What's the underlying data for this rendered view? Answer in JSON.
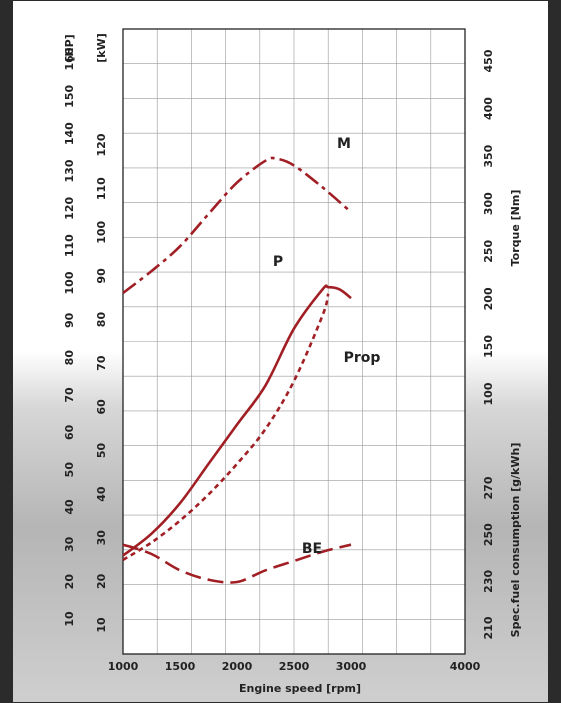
{
  "chart_data": {
    "type": "line",
    "xlabel": "Engine speed [rpm]",
    "x_ticks": [
      1000,
      1500,
      2000,
      2500,
      3000,
      4000
    ],
    "xlim": [
      1000,
      4000
    ],
    "axes": {
      "hp": {
        "label": "[HP]",
        "ticks": [
          10,
          20,
          30,
          40,
          50,
          60,
          70,
          80,
          90,
          100,
          110,
          120,
          130,
          140,
          150,
          160
        ]
      },
      "kw": {
        "label": "[kW]",
        "ticks": [
          10,
          20,
          30,
          40,
          50,
          60,
          70,
          80,
          90,
          100,
          110,
          120
        ]
      },
      "torque": {
        "label": "Torque [Nm]",
        "ticks": [
          100,
          150,
          200,
          250,
          300,
          350,
          400,
          450
        ]
      },
      "fuel": {
        "label": "Spec.fuel consumption [g/kWh]",
        "ticks": [
          210,
          230,
          250,
          270
        ]
      }
    },
    "grid": true,
    "color": "#a11f24",
    "series": [
      {
        "name": "M",
        "axis": "torque",
        "style": "dash-dot",
        "x": [
          1000,
          1250,
          1500,
          1750,
          2000,
          2250,
          2350,
          2500,
          2750,
          3000
        ],
        "y": [
          202,
          225,
          251,
          285,
          318,
          341,
          343,
          336,
          313,
          287
        ]
      },
      {
        "name": "P",
        "axis": "kw",
        "style": "solid",
        "x": [
          1000,
          1250,
          1500,
          1750,
          2000,
          2250,
          2500,
          2750,
          2800,
          2900,
          3000
        ],
        "y": [
          25,
          30,
          37,
          46,
          55,
          64,
          77,
          86,
          86.5,
          86,
          84
        ]
      },
      {
        "name": "Prop",
        "axis": "kw",
        "style": "dashed",
        "x": [
          1000,
          1250,
          1500,
          1750,
          2000,
          2250,
          2500,
          2750,
          2800
        ],
        "y": [
          24,
          28,
          33,
          39,
          46,
          54,
          65,
          80,
          85
        ]
      },
      {
        "name": "BE",
        "axis": "fuel",
        "style": "long-dash",
        "x": [
          1000,
          1250,
          1500,
          1750,
          2000,
          2250,
          2500,
          2750,
          3000
        ],
        "y": [
          244,
          240,
          233,
          229,
          228,
          233,
          237,
          241,
          244
        ]
      }
    ]
  }
}
